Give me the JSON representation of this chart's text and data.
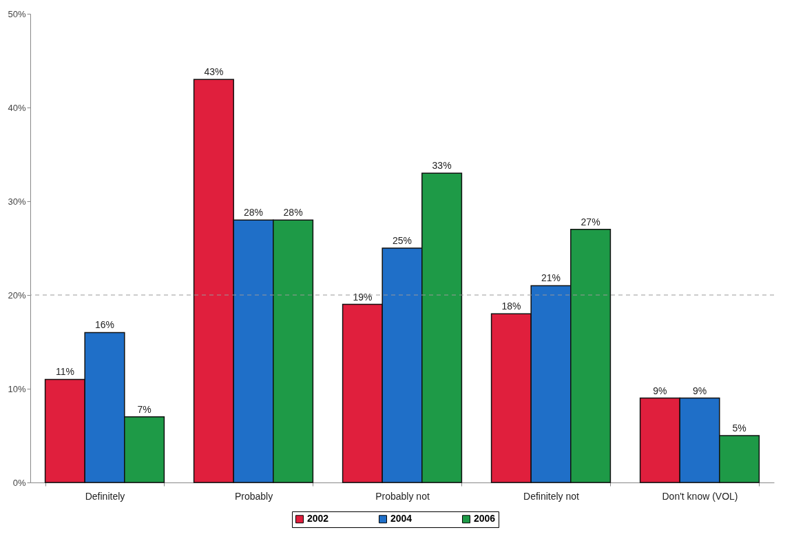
{
  "chart_data": {
    "type": "bar",
    "categories": [
      "Definitely",
      "Probably",
      "Probably not",
      "Definitely not",
      "Don't know (VOL)"
    ],
    "series": [
      {
        "name": "2002",
        "color": "#e01f3d",
        "values": [
          11,
          43,
          19,
          18,
          9
        ],
        "value_labels": [
          "11%",
          "43%",
          "19%",
          "18%",
          "9%"
        ]
      },
      {
        "name": "2004",
        "color": "#1f6fc8",
        "values": [
          16,
          28,
          25,
          21,
          9
        ],
        "value_labels": [
          "16%",
          "28%",
          "25%",
          "21%",
          "9%"
        ]
      },
      {
        "name": "2006",
        "color": "#1e9a47",
        "values": [
          7,
          28,
          33,
          27,
          5
        ],
        "value_labels": [
          "7%",
          "28%",
          "33%",
          "27%",
          "5%"
        ]
      }
    ],
    "ylim": [
      0,
      50
    ],
    "yticks": [
      {
        "value": 0,
        "label": "0%"
      },
      {
        "value": 10,
        "label": "10%"
      },
      {
        "value": 20,
        "label": "20%"
      },
      {
        "value": 30,
        "label": "30%"
      },
      {
        "value": 40,
        "label": "40%"
      },
      {
        "value": 50,
        "label": "50%"
      }
    ],
    "grid": false,
    "legend": "bottom",
    "ref_lines": [
      {
        "axis": "y",
        "value": 20,
        "line_style": "dashed",
        "color": "#999999"
      }
    ]
  }
}
